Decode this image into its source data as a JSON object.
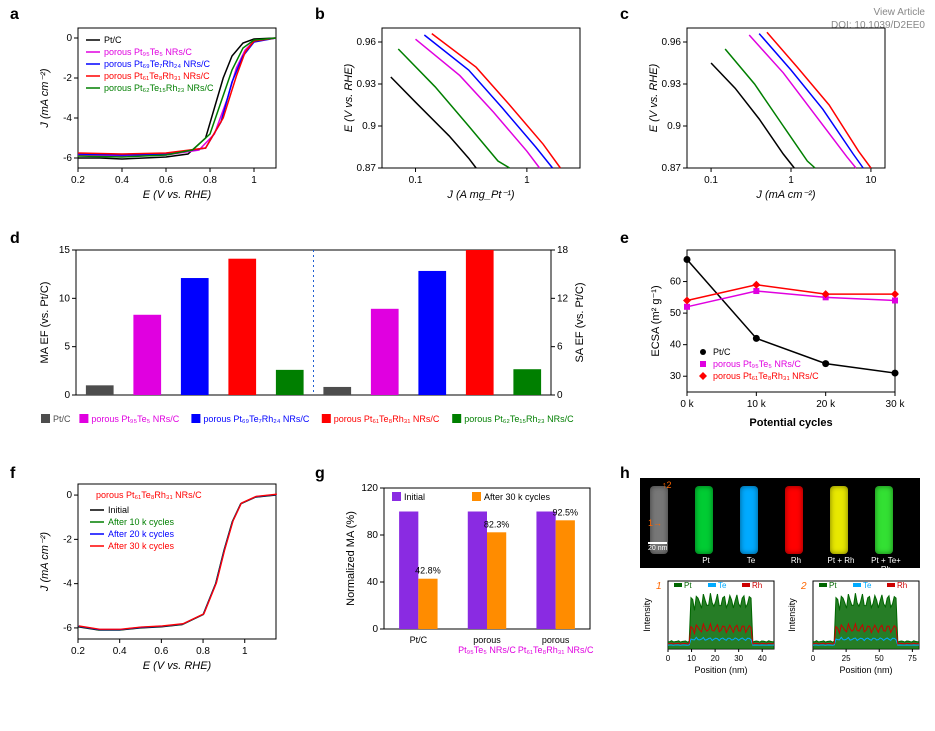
{
  "meta": {
    "view_article": "View Article",
    "doi": "DOI: 10.1039/D2EE0"
  },
  "common_colors": {
    "PtC": "#000000",
    "Pt95Te5": "#e000e0",
    "Pt69Te7Rh24": "#0000ff",
    "Pt61Te8Rh31": "#ff0000",
    "Pt62Te15Rh23": "#007f00"
  },
  "panel_a": {
    "label": "a",
    "xlabel": "E (V vs. RHE)",
    "ylabel": "J (mA cm⁻²)",
    "xlim": [
      0.2,
      1.1
    ],
    "xticks": [
      0.2,
      0.4,
      0.6,
      0.8,
      1.0
    ],
    "ylim": [
      -6.5,
      0.5
    ],
    "yticks": [
      -6,
      -4,
      -2,
      0
    ],
    "legend": [
      {
        "label": "Pt/C",
        "color": "#000000"
      },
      {
        "label": "porous Pt₉₅Te₅ NRs/C",
        "color": "#e000e0"
      },
      {
        "label": "porous Pt₆₉Te₇Rh₂₄ NRs/C",
        "color": "#0000ff"
      },
      {
        "label": "porous Pt₆₁Te₈Rh₃₁ NRs/C",
        "color": "#ff0000"
      },
      {
        "label": "porous Pt₆₂Te₁₅Rh₂₃ NRs/C",
        "color": "#007f00"
      }
    ],
    "series": {
      "PtC": [
        [
          0.2,
          -6.0
        ],
        [
          0.3,
          -6.0
        ],
        [
          0.4,
          -6.05
        ],
        [
          0.5,
          -6.0
        ],
        [
          0.6,
          -5.95
        ],
        [
          0.7,
          -5.8
        ],
        [
          0.78,
          -5.0
        ],
        [
          0.82,
          -3.5
        ],
        [
          0.86,
          -2.0
        ],
        [
          0.9,
          -0.9
        ],
        [
          0.95,
          -0.25
        ],
        [
          1.0,
          -0.05
        ],
        [
          1.1,
          0
        ]
      ],
      "Pt95Te5": [
        [
          0.2,
          -5.85
        ],
        [
          0.4,
          -5.9
        ],
        [
          0.6,
          -5.85
        ],
        [
          0.75,
          -5.6
        ],
        [
          0.82,
          -4.8
        ],
        [
          0.88,
          -3.0
        ],
        [
          0.92,
          -1.5
        ],
        [
          0.96,
          -0.6
        ],
        [
          1.0,
          -0.15
        ],
        [
          1.1,
          0
        ]
      ],
      "Pt69Te7Rh24": [
        [
          0.2,
          -5.8
        ],
        [
          0.4,
          -5.85
        ],
        [
          0.6,
          -5.8
        ],
        [
          0.78,
          -5.5
        ],
        [
          0.85,
          -4.2
        ],
        [
          0.9,
          -2.2
        ],
        [
          0.95,
          -0.9
        ],
        [
          1.0,
          -0.2
        ],
        [
          1.1,
          0
        ]
      ],
      "Pt61Te8Rh31": [
        [
          0.2,
          -5.75
        ],
        [
          0.4,
          -5.8
        ],
        [
          0.6,
          -5.75
        ],
        [
          0.78,
          -5.5
        ],
        [
          0.86,
          -4.0
        ],
        [
          0.92,
          -1.9
        ],
        [
          0.96,
          -0.7
        ],
        [
          1.0,
          -0.15
        ],
        [
          1.1,
          0
        ]
      ],
      "Pt62Te15Rh23": [
        [
          0.2,
          -5.9
        ],
        [
          0.4,
          -5.95
        ],
        [
          0.6,
          -5.85
        ],
        [
          0.72,
          -5.6
        ],
        [
          0.8,
          -4.8
        ],
        [
          0.85,
          -3.2
        ],
        [
          0.9,
          -1.6
        ],
        [
          0.95,
          -0.5
        ],
        [
          1.0,
          -0.1
        ],
        [
          1.1,
          0
        ]
      ]
    }
  },
  "panel_b": {
    "label": "b",
    "xlabel": "J (A mg_Pt⁻¹)",
    "ylabel": "E (V vs. RHE)",
    "xlim_log": [
      0.05,
      3
    ],
    "xticks": [
      0.1,
      1
    ],
    "ylim": [
      0.87,
      0.97
    ],
    "yticks": [
      0.87,
      0.9,
      0.93,
      0.96
    ],
    "series": {
      "PtC": [
        [
          0.06,
          0.935
        ],
        [
          0.1,
          0.917
        ],
        [
          0.2,
          0.893
        ],
        [
          0.3,
          0.877
        ],
        [
          0.35,
          0.87
        ]
      ],
      "Pt62Te15Rh23": [
        [
          0.07,
          0.955
        ],
        [
          0.15,
          0.928
        ],
        [
          0.3,
          0.9
        ],
        [
          0.55,
          0.875
        ],
        [
          0.7,
          0.87
        ]
      ],
      "Pt95Te5": [
        [
          0.1,
          0.962
        ],
        [
          0.25,
          0.936
        ],
        [
          0.5,
          0.91
        ],
        [
          1.0,
          0.882
        ],
        [
          1.3,
          0.87
        ]
      ],
      "Pt69Te7Rh24": [
        [
          0.12,
          0.965
        ],
        [
          0.3,
          0.94
        ],
        [
          0.6,
          0.913
        ],
        [
          1.2,
          0.885
        ],
        [
          1.7,
          0.87
        ]
      ],
      "Pt61Te8Rh31": [
        [
          0.14,
          0.966
        ],
        [
          0.35,
          0.942
        ],
        [
          0.7,
          0.915
        ],
        [
          1.4,
          0.887
        ],
        [
          2.0,
          0.87
        ]
      ]
    }
  },
  "panel_c": {
    "label": "c",
    "xlabel": "J (mA cm⁻²)",
    "ylabel": "E (V vs. RHE)",
    "xlim_log": [
      0.05,
      15
    ],
    "xticks": [
      0.1,
      1,
      10
    ],
    "ylim": [
      0.87,
      0.97
    ],
    "yticks": [
      0.87,
      0.9,
      0.93,
      0.96
    ],
    "series": {
      "PtC": [
        [
          0.1,
          0.945
        ],
        [
          0.2,
          0.927
        ],
        [
          0.4,
          0.905
        ],
        [
          0.8,
          0.88
        ],
        [
          1.1,
          0.87
        ]
      ],
      "Pt62Te15Rh23": [
        [
          0.15,
          0.955
        ],
        [
          0.35,
          0.93
        ],
        [
          0.8,
          0.9
        ],
        [
          1.6,
          0.875
        ],
        [
          2.0,
          0.87
        ]
      ],
      "Pt95Te5": [
        [
          0.3,
          0.965
        ],
        [
          0.8,
          0.938
        ],
        [
          2,
          0.908
        ],
        [
          5,
          0.878
        ],
        [
          6.5,
          0.87
        ]
      ],
      "Pt69Te7Rh24": [
        [
          0.4,
          0.966
        ],
        [
          1,
          0.94
        ],
        [
          2.5,
          0.912
        ],
        [
          6,
          0.88
        ],
        [
          8,
          0.87
        ]
      ],
      "Pt61Te8Rh31": [
        [
          0.5,
          0.967
        ],
        [
          1.2,
          0.942
        ],
        [
          3,
          0.915
        ],
        [
          7,
          0.882
        ],
        [
          10,
          0.87
        ]
      ]
    }
  },
  "panel_d": {
    "label": "d",
    "ylabel_left": "MA EF (vs. Pt/C)",
    "ylabel_right": "SA EF (vs. Pt/C)",
    "ylim_left": [
      0,
      15
    ],
    "yticks_left": [
      0,
      5,
      10,
      15
    ],
    "ylim_right": [
      0,
      18
    ],
    "yticks_right": [
      0,
      6,
      12,
      18
    ],
    "bars_left": [
      1.0,
      8.3,
      12.1,
      14.1,
      2.6
    ],
    "bars_right": [
      1.0,
      10.7,
      15.4,
      18.0,
      3.2
    ],
    "colors": [
      "#4d4d4d",
      "#e000e0",
      "#0000ff",
      "#ff0000",
      "#007f00"
    ],
    "legend": [
      {
        "label": "Pt/C",
        "color": "#4d4d4d"
      },
      {
        "label": "porous Pt₉₅Te₅ NRs/C",
        "color": "#e000e0"
      },
      {
        "label": "porous Pt₆₉Te₇Rh₂₄ NRs/C",
        "color": "#0000ff"
      },
      {
        "label": "porous Pt₆₁Te₈Rh₃₁ NRs/C",
        "color": "#ff0000"
      },
      {
        "label": "porous Pt₆₂Te₁₅Rh₂₃ NRs/C",
        "color": "#007f00"
      }
    ]
  },
  "panel_e": {
    "label": "e",
    "xlabel": "Potential cycles",
    "ylabel": "ECSA (m² g⁻¹)",
    "xticks": [
      "0 k",
      "10 k",
      "20 k",
      "30 k"
    ],
    "ylim": [
      25,
      70
    ],
    "yticks": [
      30,
      40,
      50,
      60
    ],
    "legend": [
      {
        "label": "Pt/C",
        "color": "#000000",
        "marker": "circle"
      },
      {
        "label": "porous Pt₉₅Te₅ NRs/C",
        "color": "#e000e0",
        "marker": "square"
      },
      {
        "label": "porous Pt₆₁Te₈Rh₃₁ NRs/C",
        "color": "#ff0000",
        "marker": "diamond"
      }
    ],
    "series": {
      "PtC": [
        [
          0,
          67
        ],
        [
          1,
          42
        ],
        [
          2,
          34
        ],
        [
          3,
          31
        ]
      ],
      "Pt95Te5": [
        [
          0,
          52
        ],
        [
          1,
          57
        ],
        [
          2,
          55
        ],
        [
          3,
          54
        ]
      ],
      "Pt61Te8Rh31": [
        [
          0,
          54
        ],
        [
          1,
          59
        ],
        [
          2,
          56
        ],
        [
          3,
          56
        ]
      ]
    }
  },
  "panel_f": {
    "label": "f",
    "title": "porous Pt₆₁Te₈Rh₃₁ NRs/C",
    "xlabel": "E (V vs. RHE)",
    "ylabel": "J (mA cm⁻²)",
    "xlim": [
      0.2,
      1.15
    ],
    "xticks": [
      0.2,
      0.4,
      0.6,
      0.8,
      1.0
    ],
    "ylim": [
      -6.5,
      0.5
    ],
    "yticks": [
      -6,
      -4,
      -2,
      0
    ],
    "legend": [
      {
        "label": "Initial",
        "color": "#000000"
      },
      {
        "label": "After 10 k cycles",
        "color": "#007f00"
      },
      {
        "label": "After 20 k cycles",
        "color": "#0000ff"
      },
      {
        "label": "After 30 k cycles",
        "color": "#ff0000"
      }
    ],
    "series": {
      "curve": [
        [
          0.2,
          -5.95
        ],
        [
          0.3,
          -6.1
        ],
        [
          0.4,
          -6.1
        ],
        [
          0.5,
          -6.0
        ],
        [
          0.6,
          -5.95
        ],
        [
          0.7,
          -5.85
        ],
        [
          0.8,
          -5.4
        ],
        [
          0.86,
          -4.0
        ],
        [
          0.9,
          -2.5
        ],
        [
          0.94,
          -1.2
        ],
        [
          0.98,
          -0.4
        ],
        [
          1.05,
          -0.1
        ],
        [
          1.15,
          0
        ]
      ]
    }
  },
  "panel_g": {
    "label": "g",
    "ylabel": "Normalized MA (%)",
    "ylim": [
      0,
      120
    ],
    "yticks": [
      0,
      40,
      80,
      120
    ],
    "categories": [
      "Pt/C",
      "porous\nPt₉₅Te₅ NRs/C",
      "porous\nPt₆₁Te₈Rh₃₁ NRs/C"
    ],
    "series": [
      {
        "label": "Initial",
        "color": "#8a2be2",
        "values": [
          100,
          100,
          100
        ]
      },
      {
        "label": "After 30 k cycles",
        "color": "#ff8c00",
        "values": [
          42.8,
          82.3,
          92.5
        ]
      }
    ],
    "annotations": [
      "42.8%",
      "82.3%",
      "92.5%"
    ]
  },
  "panel_h": {
    "label": "h",
    "scale": "20 nm",
    "map_labels": [
      "",
      "Pt",
      "Te",
      "Rh",
      "Pt + Rh",
      "Pt + Te+ Rh"
    ],
    "map_colors": [
      "#777",
      "#00cc33",
      "#00aaff",
      "#ff0000",
      "#e8e800",
      "#33e033"
    ],
    "arrows": [
      "1",
      "2"
    ],
    "linescan_xlabel": "Position (nm)",
    "linescan_ylabel": "Intensity",
    "linescan_legend": [
      {
        "label": "Pt",
        "color": "#006600"
      },
      {
        "label": "Te",
        "color": "#00aaff"
      },
      {
        "label": "Rh",
        "color": "#cc0000"
      }
    ],
    "linescan1": {
      "xmax": 45,
      "xticks": [
        0,
        10,
        20,
        30,
        40
      ]
    },
    "linescan2": {
      "xmax": 80,
      "xticks": [
        0,
        25,
        50,
        75
      ]
    }
  }
}
